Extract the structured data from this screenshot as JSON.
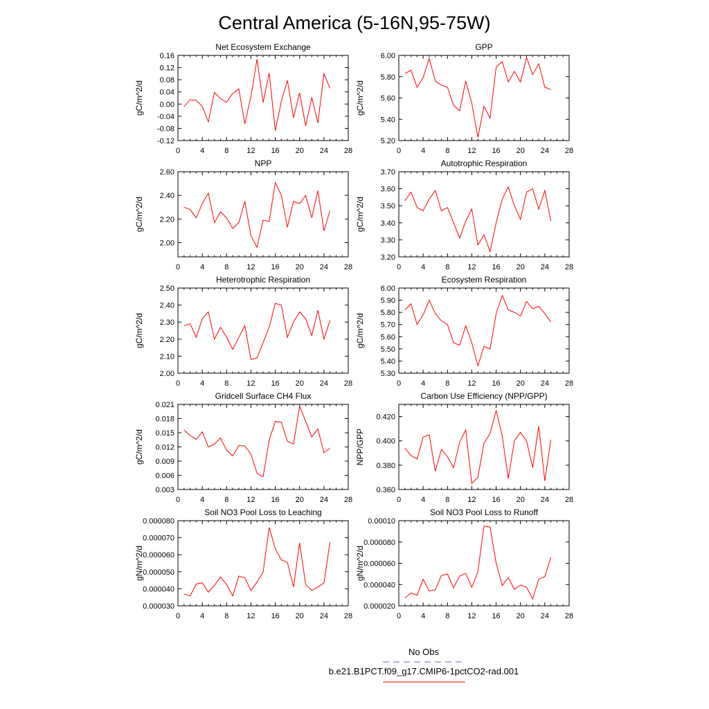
{
  "figure": {
    "title": "Central America (5-16N,95-75W)",
    "line_color": "#ff0000",
    "obs_color": "#6666cc",
    "legend": {
      "entries": [
        {
          "label": "No Obs",
          "style": "dashed",
          "color": "#6666cc"
        },
        {
          "label": "b.e21.B1PCT.f09_g17.CMIP6-1pctCO2-rad.001",
          "style": "solid",
          "color": "#ff0000"
        }
      ]
    }
  },
  "chart_data": [
    {
      "type": "line",
      "title": "Net Ecosystem Exchange",
      "ylabel": "gC/m^2/d",
      "xlim": [
        0,
        28
      ],
      "x_ticks": [
        "0",
        "4",
        "8",
        "12",
        "16",
        "20",
        "24",
        "28"
      ],
      "ylim": [
        -0.12,
        0.16
      ],
      "y_ticks": [
        "-0.12",
        "-0.08",
        "-0.04",
        "0.00",
        "0.04",
        "0.08",
        "0.12",
        "0.16"
      ],
      "x": [
        1,
        2,
        3,
        4,
        5,
        6,
        7,
        8,
        9,
        10,
        11,
        12,
        13,
        14,
        15,
        16,
        17,
        18,
        19,
        20,
        21,
        22,
        23,
        24,
        25
      ],
      "values": [
        -0.008,
        0.014,
        0.012,
        -0.008,
        -0.058,
        0.038,
        0.018,
        0.006,
        0.035,
        0.05,
        -0.065,
        0.025,
        0.148,
        0.005,
        0.102,
        -0.088,
        0.01,
        0.078,
        -0.045,
        0.037,
        -0.072,
        0.022,
        -0.062,
        0.1,
        0.052
      ]
    },
    {
      "type": "line",
      "title": "GPP",
      "ylabel": "gC/m^2/d",
      "xlim": [
        0,
        28
      ],
      "x_ticks": [
        "0",
        "4",
        "8",
        "12",
        "16",
        "20",
        "24",
        "28"
      ],
      "ylim": [
        5.2,
        6.0
      ],
      "y_ticks": [
        "5.20",
        "5.40",
        "5.60",
        "5.80",
        "6.00"
      ],
      "x": [
        1,
        2,
        3,
        4,
        5,
        6,
        7,
        8,
        9,
        10,
        11,
        12,
        13,
        14,
        15,
        16,
        17,
        18,
        19,
        20,
        21,
        22,
        23,
        24,
        25
      ],
      "values": [
        5.83,
        5.86,
        5.7,
        5.79,
        5.97,
        5.76,
        5.72,
        5.7,
        5.53,
        5.48,
        5.76,
        5.55,
        5.23,
        5.52,
        5.41,
        5.89,
        5.94,
        5.75,
        5.85,
        5.75,
        5.98,
        5.82,
        5.92,
        5.7,
        5.68
      ]
    },
    {
      "type": "line",
      "title": "NPP",
      "ylabel": "gC/m^2/d",
      "xlim": [
        0,
        28
      ],
      "x_ticks": [
        "0",
        "4",
        "8",
        "12",
        "16",
        "20",
        "24",
        "28"
      ],
      "ylim": [
        1.88,
        2.6
      ],
      "y_ticks": [
        "2.00",
        "2.20",
        "2.40",
        "2.60"
      ],
      "y_tick_values": [
        2.0,
        2.2,
        2.4,
        2.6
      ],
      "x": [
        1,
        2,
        3,
        4,
        5,
        6,
        7,
        8,
        9,
        10,
        11,
        12,
        13,
        14,
        15,
        16,
        17,
        18,
        19,
        20,
        21,
        22,
        23,
        24,
        25
      ],
      "values": [
        2.3,
        2.28,
        2.21,
        2.33,
        2.42,
        2.17,
        2.26,
        2.21,
        2.12,
        2.17,
        2.35,
        2.06,
        1.96,
        2.19,
        2.18,
        2.51,
        2.4,
        2.13,
        2.35,
        2.33,
        2.4,
        2.21,
        2.44,
        2.1,
        2.27
      ]
    },
    {
      "type": "line",
      "title": "Autotrophic Respiration",
      "ylabel": "gC/m^2/d",
      "xlim": [
        0,
        28
      ],
      "x_ticks": [
        "0",
        "4",
        "8",
        "12",
        "16",
        "20",
        "24",
        "28"
      ],
      "ylim": [
        3.2,
        3.7
      ],
      "y_ticks": [
        "3.20",
        "3.30",
        "3.40",
        "3.50",
        "3.60",
        "3.70"
      ],
      "x": [
        1,
        2,
        3,
        4,
        5,
        6,
        7,
        8,
        9,
        10,
        11,
        12,
        13,
        14,
        15,
        16,
        17,
        18,
        19,
        20,
        21,
        22,
        23,
        24,
        25
      ],
      "values": [
        3.53,
        3.58,
        3.49,
        3.47,
        3.54,
        3.59,
        3.47,
        3.49,
        3.4,
        3.31,
        3.41,
        3.48,
        3.27,
        3.33,
        3.23,
        3.4,
        3.54,
        3.61,
        3.5,
        3.42,
        3.58,
        3.6,
        3.48,
        3.59,
        3.41
      ]
    },
    {
      "type": "line",
      "title": "Heterotrophic Respiration",
      "ylabel": "gC/m^2/d",
      "xlim": [
        0,
        28
      ],
      "x_ticks": [
        "0",
        "4",
        "8",
        "12",
        "16",
        "20",
        "24",
        "28"
      ],
      "ylim": [
        2.0,
        2.5
      ],
      "y_ticks": [
        "2.00",
        "2.10",
        "2.20",
        "2.30",
        "2.40",
        "2.50"
      ],
      "x": [
        1,
        2,
        3,
        4,
        5,
        6,
        7,
        8,
        9,
        10,
        11,
        12,
        13,
        14,
        15,
        16,
        17,
        18,
        19,
        20,
        21,
        22,
        23,
        24,
        25
      ],
      "values": [
        2.28,
        2.29,
        2.21,
        2.32,
        2.36,
        2.2,
        2.27,
        2.21,
        2.14,
        2.21,
        2.28,
        2.08,
        2.09,
        2.18,
        2.27,
        2.41,
        2.4,
        2.21,
        2.3,
        2.36,
        2.32,
        2.22,
        2.37,
        2.2,
        2.31
      ]
    },
    {
      "type": "line",
      "title": "Ecosystem Respiration",
      "ylabel": "gC/m^2/d",
      "xlim": [
        0,
        28
      ],
      "x_ticks": [
        "0",
        "4",
        "8",
        "12",
        "16",
        "20",
        "24",
        "28"
      ],
      "ylim": [
        5.3,
        6.0
      ],
      "y_ticks": [
        "5.30",
        "5.40",
        "5.50",
        "5.60",
        "5.70",
        "5.80",
        "5.90",
        "6.00"
      ],
      "x": [
        1,
        2,
        3,
        4,
        5,
        6,
        7,
        8,
        9,
        10,
        11,
        12,
        13,
        14,
        15,
        16,
        17,
        18,
        19,
        20,
        21,
        22,
        23,
        24,
        25
      ],
      "values": [
        5.82,
        5.87,
        5.7,
        5.78,
        5.9,
        5.79,
        5.73,
        5.7,
        5.55,
        5.53,
        5.69,
        5.55,
        5.36,
        5.52,
        5.5,
        5.79,
        5.94,
        5.82,
        5.8,
        5.77,
        5.89,
        5.83,
        5.85,
        5.79,
        5.72
      ]
    },
    {
      "type": "line",
      "title": "Gridcell Surface CH4 Flux",
      "ylabel": "gC/m^2/d",
      "xlim": [
        0,
        28
      ],
      "x_ticks": [
        "0",
        "4",
        "8",
        "12",
        "16",
        "20",
        "24",
        "28"
      ],
      "ylim": [
        0.003,
        0.021
      ],
      "y_ticks": [
        "0.003",
        "0.006",
        "0.009",
        "0.012",
        "0.015",
        "0.018",
        "0.021"
      ],
      "x": [
        1,
        2,
        3,
        4,
        5,
        6,
        7,
        8,
        9,
        10,
        11,
        12,
        13,
        14,
        15,
        16,
        17,
        18,
        19,
        20,
        21,
        22,
        23,
        24,
        25
      ],
      "values": [
        0.0156,
        0.0144,
        0.0136,
        0.0152,
        0.012,
        0.0126,
        0.0139,
        0.0113,
        0.0101,
        0.0123,
        0.0122,
        0.0105,
        0.0064,
        0.0057,
        0.0135,
        0.0174,
        0.0172,
        0.0132,
        0.0126,
        0.0206,
        0.0174,
        0.0141,
        0.0158,
        0.0108,
        0.0117
      ]
    },
    {
      "type": "line",
      "title": "Carbon Use Efficiency (NPP/GPP)",
      "ylabel": "NPP/GPP",
      "xlim": [
        0,
        28
      ],
      "x_ticks": [
        "0",
        "4",
        "8",
        "12",
        "16",
        "20",
        "24",
        "28"
      ],
      "ylim": [
        0.36,
        0.43
      ],
      "y_ticks": [
        "0.360",
        "0.380",
        "0.400",
        "0.420"
      ],
      "y_tick_values": [
        0.36,
        0.38,
        0.4,
        0.42
      ],
      "x": [
        1,
        2,
        3,
        4,
        5,
        6,
        7,
        8,
        9,
        10,
        11,
        12,
        13,
        14,
        15,
        16,
        17,
        18,
        19,
        20,
        21,
        22,
        23,
        24,
        25
      ],
      "values": [
        0.394,
        0.388,
        0.385,
        0.403,
        0.405,
        0.375,
        0.393,
        0.387,
        0.378,
        0.399,
        0.409,
        0.365,
        0.37,
        0.398,
        0.406,
        0.425,
        0.404,
        0.369,
        0.4,
        0.407,
        0.4,
        0.378,
        0.412,
        0.367,
        0.401
      ]
    },
    {
      "type": "line",
      "title": "Soil NO3 Pool Loss to Leaching",
      "ylabel": "gN/m^2/d",
      "xlim": [
        0,
        28
      ],
      "x_ticks": [
        "0",
        "4",
        "8",
        "12",
        "16",
        "20",
        "24",
        "28"
      ],
      "ylim": [
        3e-05,
        8e-05
      ],
      "y_ticks": [
        "0.000030",
        "0.000040",
        "0.000050",
        "0.000060",
        "0.000070",
        "0.000080"
      ],
      "x": [
        1,
        2,
        3,
        4,
        5,
        6,
        7,
        8,
        9,
        10,
        11,
        12,
        13,
        14,
        15,
        16,
        17,
        18,
        19,
        20,
        21,
        22,
        23,
        24,
        25
      ],
      "values": [
        3.7e-05,
        3.58e-05,
        4.28e-05,
        4.35e-05,
        3.8e-05,
        4.2e-05,
        4.7e-05,
        4.25e-05,
        3.58e-05,
        4.75e-05,
        4.65e-05,
        3.9e-05,
        4.4e-05,
        4.98e-05,
        7.6e-05,
        6.35e-05,
        5.7e-05,
        5.55e-05,
        4.1e-05,
        6.7e-05,
        4.25e-05,
        3.9e-05,
        4.1e-05,
        4.35e-05,
        6.75e-05
      ]
    },
    {
      "type": "line",
      "title": "Soil NO3 Pool Loss to Runoff",
      "ylabel": "gN/m^2/d",
      "xlim": [
        0,
        28
      ],
      "x_ticks": [
        "0",
        "4",
        "8",
        "12",
        "16",
        "20",
        "24",
        "28"
      ],
      "ylim": [
        2e-05,
        0.0001
      ],
      "y_ticks": [
        "0.000020",
        "0.000040",
        "0.000060",
        "0.000080",
        "0.00010"
      ],
      "x": [
        1,
        2,
        3,
        4,
        5,
        6,
        7,
        8,
        9,
        10,
        11,
        12,
        13,
        14,
        15,
        16,
        17,
        18,
        19,
        20,
        21,
        22,
        23,
        24,
        25
      ],
      "values": [
        2.75e-05,
        3.2e-05,
        3e-05,
        4.5e-05,
        3.4e-05,
        3.5e-05,
        4.85e-05,
        5e-05,
        3.7e-05,
        4.8e-05,
        5.05e-05,
        3.75e-05,
        5.2e-05,
        9.5e-05,
        9.4e-05,
        6e-05,
        3.9e-05,
        4.65e-05,
        3.55e-05,
        3.95e-05,
        3.75e-05,
        2.65e-05,
        4.5e-05,
        4.75e-05,
        6.55e-05
      ]
    }
  ]
}
